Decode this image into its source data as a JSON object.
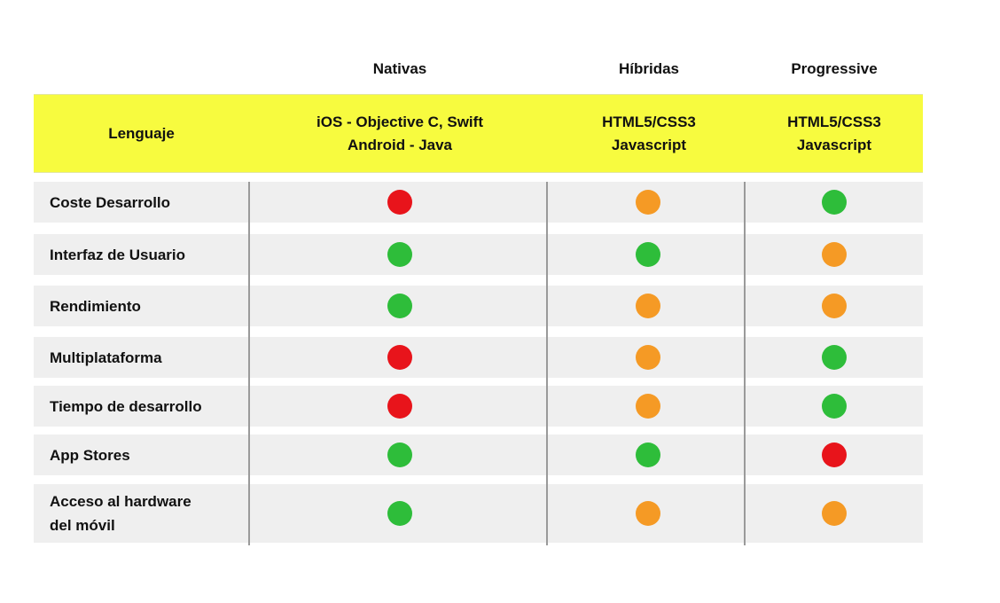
{
  "columns": [
    {
      "label": "Nativas"
    },
    {
      "label": "Híbridas"
    },
    {
      "label": "Progressive"
    }
  ],
  "language_row": {
    "label": "Lenguaje",
    "values": [
      [
        "iOS - Objective C, Swift",
        "Android - Java"
      ],
      [
        "HTML5/CSS3",
        "Javascript"
      ],
      [
        "HTML5/CSS3",
        "Javascript"
      ]
    ]
  },
  "status_colors": {
    "red": "#e8141b",
    "orange": "#f59a25",
    "green": "#2ebd3a"
  },
  "rows": [
    {
      "label": [
        "Coste Desarrollo"
      ],
      "ratings": [
        "red",
        "orange",
        "green"
      ]
    },
    {
      "label": [
        "Interfaz de Usuario"
      ],
      "ratings": [
        "green",
        "green",
        "orange"
      ]
    },
    {
      "label": [
        "Rendimiento"
      ],
      "ratings": [
        "green",
        "orange",
        "orange"
      ]
    },
    {
      "label": [
        "Multiplataforma"
      ],
      "ratings": [
        "red",
        "orange",
        "green"
      ]
    },
    {
      "label": [
        "Tiempo de desarrollo"
      ],
      "ratings": [
        "red",
        "orange",
        "green"
      ]
    },
    {
      "label": [
        "App Stores"
      ],
      "ratings": [
        "green",
        "green",
        "red"
      ]
    },
    {
      "label": [
        "Acceso al hardware",
        "del móvil"
      ],
      "ratings": [
        "green",
        "orange",
        "orange"
      ]
    }
  ]
}
